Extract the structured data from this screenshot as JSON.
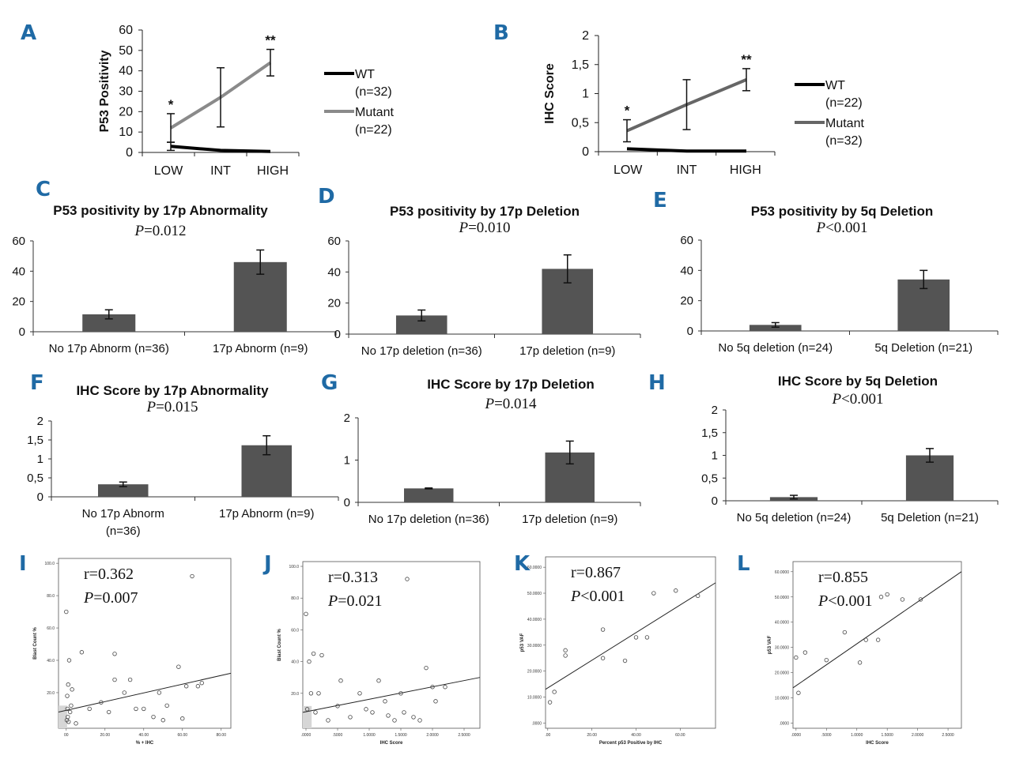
{
  "chart_data": [
    {
      "panel": "A",
      "type": "line",
      "title": "",
      "ylabel": "P53 Positivity",
      "xlabel": "",
      "categories": [
        "LOW",
        "INT",
        "HIGH"
      ],
      "yticks": [
        "0",
        "10",
        "20",
        "30",
        "40",
        "50",
        "60"
      ],
      "ylim": [
        0,
        60
      ],
      "series": [
        {
          "name": "WT",
          "count_label": "(n=32)",
          "color": "#000000",
          "values": [
            3,
            1,
            0.5
          ],
          "errors": [
            2,
            0,
            0
          ]
        },
        {
          "name": "Mutant",
          "count_label": "(n=22)",
          "color": "#8a8a8a",
          "values": [
            12,
            27,
            44
          ],
          "errors": [
            7,
            14.5,
            6.5
          ]
        }
      ],
      "annotations": [
        {
          "text": "*",
          "category": "LOW"
        },
        {
          "text": "**",
          "category": "HIGH"
        }
      ]
    },
    {
      "panel": "B",
      "type": "line",
      "title": "",
      "ylabel": "IHC Score",
      "xlabel": "",
      "categories": [
        "LOW",
        "INT",
        "HIGH"
      ],
      "yticks": [
        "0",
        "0,5",
        "1",
        "1,5",
        "2"
      ],
      "ylim": [
        0,
        2
      ],
      "series": [
        {
          "name": "WT",
          "count_label": "(n=22)",
          "color": "#000000",
          "values": [
            0.05,
            0.01,
            0.01
          ],
          "errors": [
            0,
            0,
            0
          ]
        },
        {
          "name": "Mutant",
          "count_label": "(n=32)",
          "color": "#666666",
          "values": [
            0.36,
            0.81,
            1.24
          ],
          "errors": [
            0.19,
            0.43,
            0.19
          ]
        }
      ],
      "annotations": [
        {
          "text": "*",
          "category": "LOW"
        },
        {
          "text": "**",
          "category": "HIGH"
        }
      ]
    },
    {
      "panel": "C",
      "type": "bar",
      "title": "P53 positivity by 17p Abnormality",
      "p_label": "P",
      "p_text": "=0.012",
      "categories": [
        "No 17p Abnorm (n=36)",
        "17p Abnorm (n=9)"
      ],
      "values": [
        11.5,
        46
      ],
      "errors": [
        3,
        8
      ],
      "yticks": [
        "0",
        "20",
        "40",
        "60"
      ],
      "ylim": [
        0,
        60
      ]
    },
    {
      "panel": "D",
      "type": "bar",
      "title": "P53 positivity by 17p Deletion",
      "p_label": "P",
      "p_text": "=0.010",
      "categories": [
        "No 17p deletion (n=36)",
        "17p deletion (n=9)"
      ],
      "values": [
        12,
        42
      ],
      "errors": [
        3.5,
        9
      ],
      "yticks": [
        "0",
        "20",
        "40",
        "60"
      ],
      "ylim": [
        0,
        60
      ]
    },
    {
      "panel": "E",
      "type": "bar",
      "title": "P53 positivity by 5q Deletion",
      "p_label": "P",
      "p_text": "<0.001",
      "categories": [
        "No 5q deletion (n=24)",
        "5q Deletion (n=21)"
      ],
      "values": [
        4,
        34
      ],
      "errors": [
        1.5,
        6
      ],
      "yticks": [
        "0",
        "20",
        "40",
        "60"
      ],
      "ylim": [
        0,
        60
      ]
    },
    {
      "panel": "F",
      "type": "bar",
      "title": "IHC Score by 17p Abnormality",
      "p_label": "P",
      "p_text": "=0.015",
      "categories": [
        "No 17p Abnorm",
        "17p Abnorm (n=9)"
      ],
      "category_sublabels": [
        "(n=36)",
        ""
      ],
      "values": [
        0.33,
        1.36
      ],
      "errors": [
        0.06,
        0.25
      ],
      "yticks": [
        "0",
        "0,5",
        "1",
        "1,5",
        "2"
      ],
      "ylim": [
        0,
        2
      ]
    },
    {
      "panel": "G",
      "type": "bar",
      "title": "IHC Score by 17p Deletion",
      "p_label": "P",
      "p_text": "=0.014",
      "categories": [
        "No 17p deletion (n=36)",
        "17p deletion (n=9)"
      ],
      "values": [
        0.33,
        1.18
      ],
      "errors": [
        0.01,
        0.27
      ],
      "yticks": [
        "0",
        "1",
        "2"
      ],
      "ylim": [
        0,
        2
      ]
    },
    {
      "panel": "H",
      "type": "bar",
      "title": "IHC Score by 5q Deletion",
      "p_label": "P",
      "p_text": "<0.001",
      "categories": [
        "No 5q deletion (n=24)",
        "5q Deletion (n=21)"
      ],
      "values": [
        0.08,
        1.0
      ],
      "errors": [
        0.04,
        0.15
      ],
      "yticks": [
        "0",
        "0,5",
        "1",
        "1,5",
        "2"
      ],
      "ylim": [
        0,
        2
      ]
    },
    {
      "panel": "I",
      "type": "scatter",
      "r_text": "r=0.362",
      "p_label": "P",
      "p_text": "=0.007",
      "xlabel": "% + IHC",
      "ylabel": "Blast Count %",
      "xticks": [
        "00",
        "20.00",
        "40.00",
        "60.00",
        "80.00"
      ],
      "xtick_values": [
        0,
        20,
        40,
        60,
        80
      ],
      "yticks": [
        "20.0",
        "40.0",
        "60.0",
        "80.0",
        "100.0"
      ],
      "ytick_values": [
        20,
        40,
        60,
        80,
        100
      ],
      "xlim": [
        -4,
        85
      ],
      "ylim": [
        -2,
        103
      ],
      "x": [
        0,
        0.5,
        1,
        1.5,
        2,
        0.3,
        0.8,
        2.5,
        1.2,
        0.6,
        3,
        5,
        8,
        12,
        18,
        22,
        25,
        25,
        30,
        33,
        36,
        40,
        45,
        48,
        50,
        52,
        58,
        60,
        62,
        65,
        68,
        70
      ],
      "y": [
        70,
        18,
        25,
        40,
        8,
        3,
        5,
        12,
        2,
        10,
        22,
        1,
        45,
        10,
        14,
        8,
        44,
        28,
        20,
        28,
        10,
        10,
        5,
        20,
        3,
        12,
        36,
        4,
        24,
        92,
        24,
        26
      ],
      "fit": {
        "x": [
          -4,
          85
        ],
        "y": [
          8,
          32
        ]
      }
    },
    {
      "panel": "J",
      "type": "scatter",
      "r_text": "r=0.313",
      "p_label": "P",
      "p_text": "=0.021",
      "xlabel": "IHC Score",
      "ylabel": "Blast Count %",
      "xticks": [
        ".0000",
        ".5000",
        "1.0000",
        "1.5000",
        "2.0000",
        "2.5000"
      ],
      "xtick_values": [
        0,
        0.5,
        1,
        1.5,
        2,
        2.5
      ],
      "yticks": [
        "20.0",
        "40.0",
        "60.0",
        "80.0",
        "100.0"
      ],
      "ytick_values": [
        20,
        40,
        60,
        80,
        100
      ],
      "xlim": [
        -0.05,
        2.75
      ],
      "ylim": [
        -2,
        103
      ],
      "x": [
        0,
        0.02,
        0.05,
        0.08,
        0.12,
        0.15,
        0.2,
        0.25,
        0.35,
        0.5,
        0.55,
        0.7,
        0.85,
        0.95,
        1.05,
        1.15,
        1.25,
        1.3,
        1.4,
        1.5,
        1.55,
        1.6,
        1.7,
        1.8,
        1.9,
        2.0,
        2.05,
        2.2
      ],
      "y": [
        70,
        10,
        40,
        20,
        45,
        8,
        20,
        44,
        3,
        12,
        28,
        5,
        20,
        10,
        8,
        28,
        15,
        6,
        3,
        20,
        8,
        92,
        5,
        3,
        36,
        24,
        15,
        24
      ],
      "fit": {
        "x": [
          -0.05,
          2.75
        ],
        "y": [
          8,
          30
        ]
      }
    },
    {
      "panel": "K",
      "type": "scatter",
      "r_text": "r=0.867",
      "p_label": "P",
      "p_text": "<0.001",
      "xlabel": "Percent p53 Positive by IHC",
      "ylabel": "p53 VAF",
      "xticks": [
        ".00",
        "20.00",
        "40.00",
        "60.00"
      ],
      "xtick_values": [
        0,
        20,
        40,
        60
      ],
      "yticks": [
        ".0000",
        "10.0000",
        "20.0000",
        "30.0000",
        "40.0000",
        "50.0000",
        "60.0000"
      ],
      "ytick_values": [
        0,
        10,
        20,
        30,
        40,
        50,
        60
      ],
      "xlim": [
        -1,
        76
      ],
      "ylim": [
        -2,
        64
      ],
      "x": [
        1,
        3,
        8,
        8,
        25,
        25,
        35,
        40,
        45,
        48,
        58,
        68
      ],
      "y": [
        8,
        12,
        26,
        28,
        25,
        36,
        24,
        33,
        33,
        50,
        51,
        49
      ],
      "fit": {
        "x": [
          -1,
          76
        ],
        "y": [
          13,
          54
        ]
      }
    },
    {
      "panel": "L",
      "type": "scatter",
      "r_text": "r=0.855",
      "p_label": "P",
      "p_text": "<0.001",
      "xlabel": "IHC Score",
      "ylabel": "p53 VAF",
      "xticks": [
        ".0000",
        ".5000",
        "1.0000",
        "1.5000",
        "2.0000",
        "2.5000"
      ],
      "xtick_values": [
        0,
        0.5,
        1,
        1.5,
        2,
        2.5
      ],
      "yticks": [
        ".0000",
        "10.0000",
        "20.0000",
        "30.0000",
        "40.0000",
        "50.0000",
        "60.0000"
      ],
      "ytick_values": [
        0,
        10,
        20,
        30,
        40,
        50,
        60
      ],
      "xlim": [
        -0.05,
        2.72
      ],
      "ylim": [
        -2,
        64
      ],
      "x": [
        0,
        0.04,
        0.15,
        0.5,
        0.8,
        1.05,
        1.15,
        1.35,
        1.4,
        1.5,
        1.75,
        2.05
      ],
      "y": [
        26,
        12,
        28,
        25,
        36,
        24,
        33,
        33,
        50,
        51,
        49,
        49
      ],
      "fit": {
        "x": [
          -0.05,
          2.72
        ],
        "y": [
          14,
          60
        ]
      }
    }
  ]
}
